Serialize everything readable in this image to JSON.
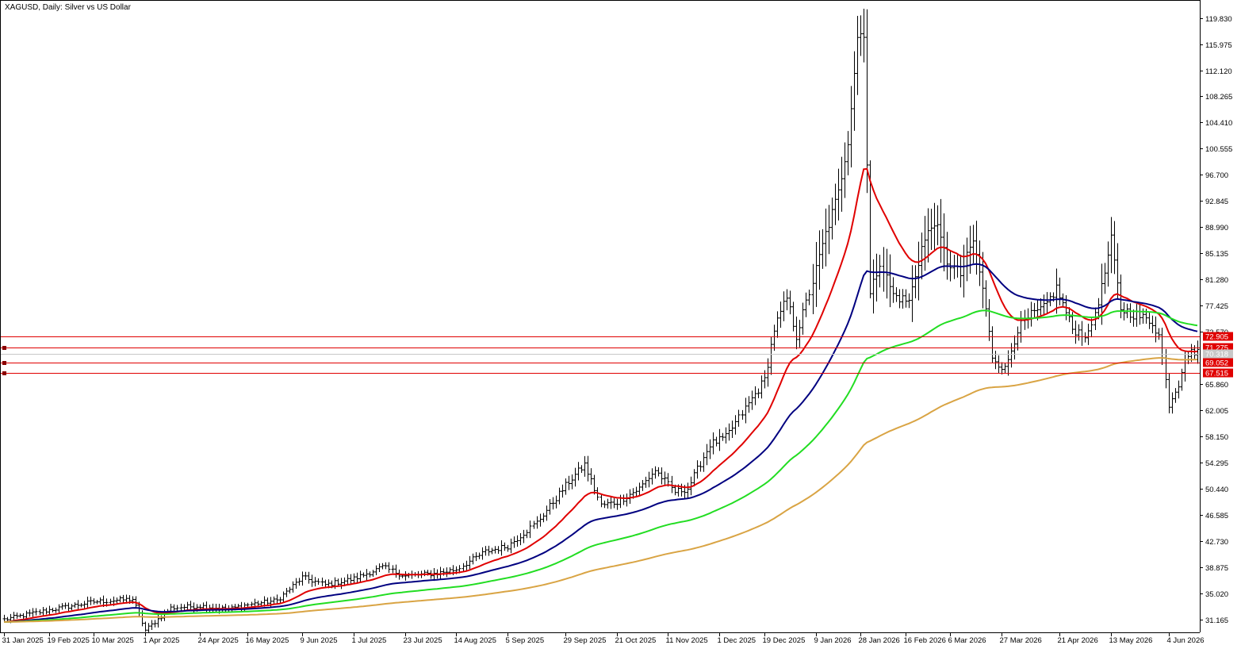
{
  "window": {
    "title": "XAGUSD, Daily:  Silver vs US Dollar"
  },
  "colors": {
    "background": "#ffffff",
    "candles": "#000000",
    "ma_fast": "#e00000",
    "ma_mid": "#000080",
    "ma_slow": "#22dd22",
    "ma_long": "#d9a444",
    "hline": "#e00000",
    "price_label_bg": "#e00000",
    "price_label_text": "#ffffff",
    "grey_line": "#c8c8c8"
  },
  "chart_data": {
    "type": "line",
    "title": "XAGUSD, Daily:  Silver vs US Dollar",
    "xlabel": "",
    "ylabel": "",
    "ylim": [
      29.3,
      122.0
    ],
    "grid": false,
    "y_ticks": [
      "119.830",
      "115.975",
      "112.120",
      "108.265",
      "104.410",
      "100.555",
      "96.700",
      "92.845",
      "88.990",
      "85.135",
      "81.280",
      "77.425",
      "73.570",
      "65.860",
      "62.005",
      "58.150",
      "54.295",
      "50.440",
      "46.585",
      "42.730",
      "38.875",
      "35.020",
      "31.165"
    ],
    "x_ticks": [
      "31 Jan 2025",
      "19 Feb 2025",
      "10 Mar 2025",
      "1 Apr 2025",
      "24 Apr 2025",
      "16 May 2025",
      "9 Jun 2025",
      "1 Jul 2025",
      "23 Jul 2025",
      "14 Aug 2025",
      "5 Sep 2025",
      "29 Sep 2025",
      "21 Oct 2025",
      "11 Nov 2025",
      "1 Dec 2025",
      "19 Dec 2025",
      "9 Jan 2026",
      "28 Jan 2026",
      "16 Feb 2026",
      "6 Mar 2026",
      "27 Mar 2026",
      "21 Apr 2026",
      "13 May 2026",
      "4 Jun 2026"
    ],
    "x_tick_bar_index": [
      0,
      14,
      28,
      44,
      61,
      76,
      93,
      109,
      125,
      141,
      157,
      175,
      191,
      207,
      223,
      237,
      253,
      267,
      281,
      295,
      311,
      329,
      345,
      363
    ],
    "bar_count": 373,
    "ohlc_anchors": [
      [
        0,
        31.2
      ],
      [
        14,
        32.6
      ],
      [
        28,
        33.8
      ],
      [
        40,
        34.2
      ],
      [
        44,
        29.6
      ],
      [
        52,
        32.9
      ],
      [
        61,
        33.2
      ],
      [
        70,
        32.7
      ],
      [
        76,
        33.4
      ],
      [
        85,
        34.0
      ],
      [
        93,
        37.4
      ],
      [
        100,
        36.3
      ],
      [
        109,
        37.2
      ],
      [
        118,
        38.9
      ],
      [
        125,
        37.6
      ],
      [
        135,
        38.0
      ],
      [
        141,
        38.6
      ],
      [
        150,
        41.2
      ],
      [
        157,
        42.0
      ],
      [
        166,
        45.5
      ],
      [
        176,
        51.5
      ],
      [
        181,
        54.0
      ],
      [
        186,
        48.0
      ],
      [
        191,
        48.5
      ],
      [
        198,
        50.5
      ],
      [
        203,
        53.2
      ],
      [
        209,
        50.0
      ],
      [
        213,
        50.5
      ],
      [
        220,
        57.0
      ],
      [
        225,
        58.0
      ],
      [
        232,
        63.0
      ],
      [
        237,
        66.5
      ],
      [
        240,
        74.0
      ],
      [
        244,
        78.5
      ],
      [
        247,
        73.0
      ],
      [
        252,
        81.0
      ],
      [
        256,
        88.0
      ],
      [
        260,
        94.0
      ],
      [
        263,
        102.0
      ],
      [
        266,
        117.0
      ],
      [
        268,
        118.0
      ],
      [
        270,
        79.0
      ],
      [
        273,
        84.0
      ],
      [
        277,
        79.0
      ],
      [
        282,
        78.0
      ],
      [
        286,
        86.0
      ],
      [
        290,
        90.0
      ],
      [
        294,
        84.0
      ],
      [
        298,
        82.0
      ],
      [
        302,
        87.0
      ],
      [
        305,
        80.0
      ],
      [
        308,
        70.0
      ],
      [
        312,
        68.0
      ],
      [
        316,
        74.0
      ],
      [
        320,
        76.0
      ],
      [
        324,
        77.0
      ],
      [
        328,
        80.0
      ],
      [
        333,
        74.0
      ],
      [
        338,
        73.0
      ],
      [
        342,
        80.0
      ],
      [
        345,
        87.0
      ],
      [
        348,
        77.0
      ],
      [
        353,
        76.0
      ],
      [
        358,
        75.0
      ],
      [
        360,
        73.0
      ],
      [
        363,
        63.0
      ],
      [
        366,
        66.0
      ],
      [
        368,
        70.0
      ],
      [
        372,
        71.0
      ]
    ],
    "hlines": [
      {
        "value": 72.905,
        "label": "72.905",
        "marker": false
      },
      {
        "value": 71.275,
        "label": "71.275",
        "marker": true
      },
      {
        "value": 70.318,
        "label": "70.318",
        "marker": false,
        "grey": true
      },
      {
        "value": 69.052,
        "label": "69.052",
        "marker": true
      },
      {
        "value": 67.515,
        "label": "67.515",
        "marker": true
      }
    ],
    "price_labels": [
      "72.905",
      "71.275",
      "70.318",
      "69.052",
      "67.515"
    ],
    "series": [
      {
        "color": "#e00000",
        "period": 20
      },
      {
        "color": "#000080",
        "period": 50
      },
      {
        "color": "#22dd22",
        "period": 100
      },
      {
        "color": "#d9a444",
        "period": 200
      }
    ]
  }
}
